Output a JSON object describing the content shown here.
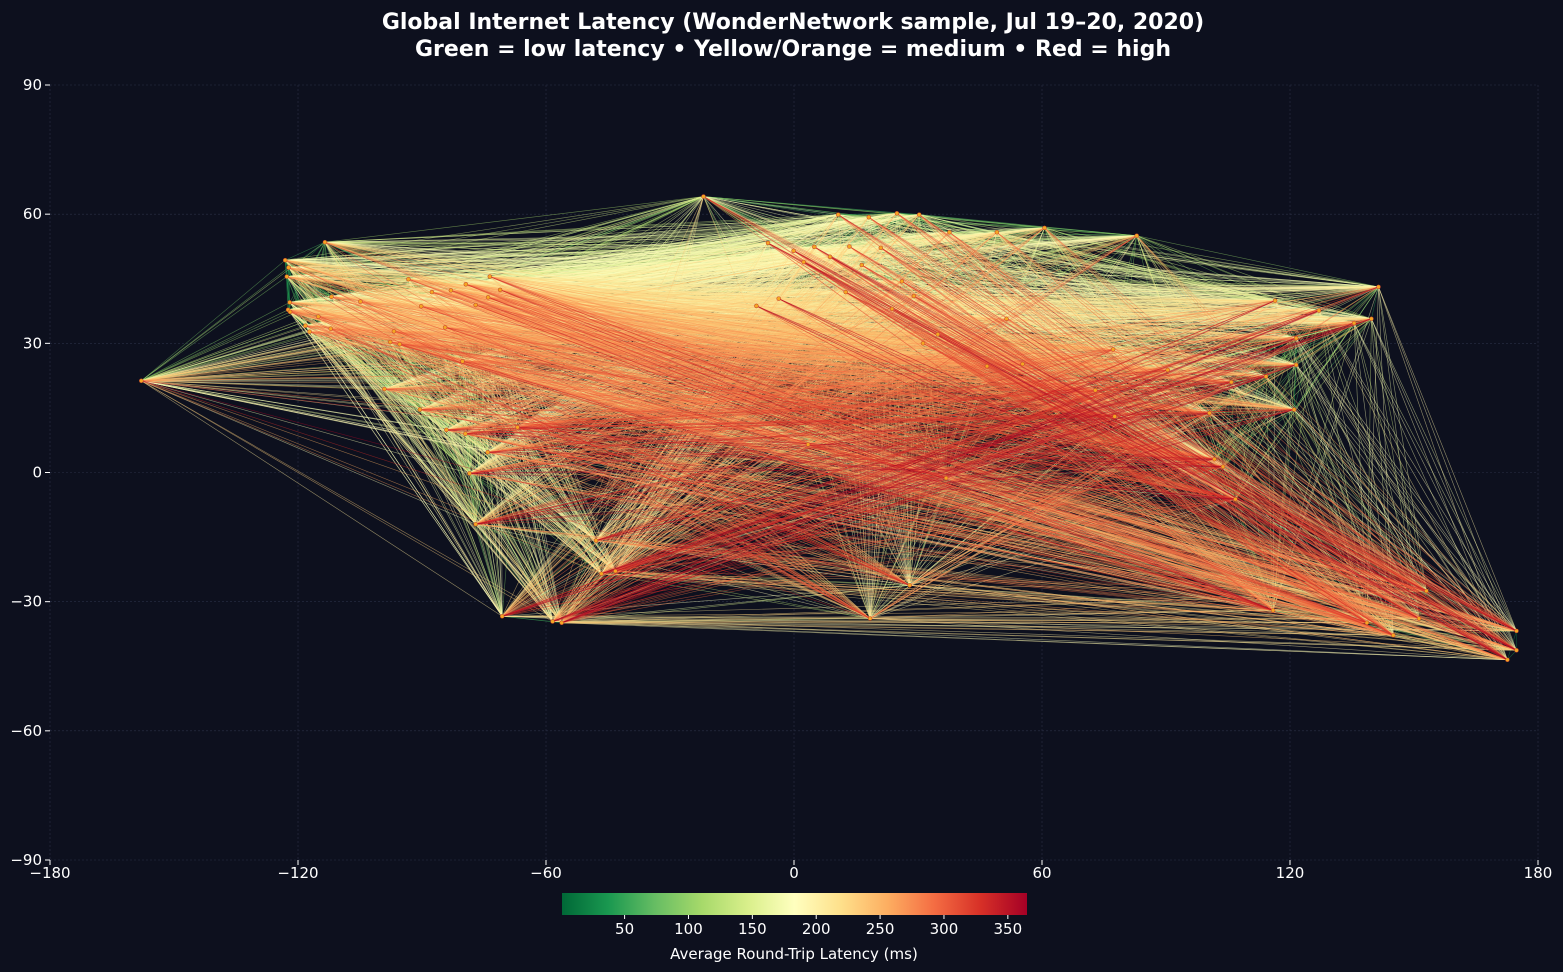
{
  "chart_data": {
    "type": "scatter",
    "title": "Global Internet Latency (WonderNetwork sample, Jul 19–20, 2020)",
    "subtitle": "Green = low latency • Yellow/Orange = medium • Red = high",
    "xlabel": "",
    "ylabel": "",
    "xlim": [
      -180,
      180
    ],
    "ylim": [
      -90,
      90
    ],
    "x_ticks": [
      -180,
      -120,
      -60,
      0,
      60,
      120,
      180
    ],
    "y_ticks": [
      90,
      60,
      30,
      0,
      -30,
      -60,
      -90
    ],
    "x_tick_labels": [
      "−180",
      "−120",
      "−60",
      "0",
      "60",
      "120",
      "180"
    ],
    "y_tick_labels": [
      "90",
      "60",
      "30",
      "0",
      "−30",
      "−60",
      "−90"
    ],
    "grid": true,
    "colorbar": {
      "label": "Average Round-Trip Latency (ms)",
      "range": [
        1,
        365
      ],
      "ticks": [
        50,
        100,
        150,
        200,
        250,
        300,
        350
      ],
      "tick_labels": [
        "50",
        "100",
        "150",
        "200",
        "250",
        "300",
        "350"
      ],
      "colormap": [
        "#006837",
        "#1a9850",
        "#66bd63",
        "#a6d96a",
        "#d9ef8b",
        "#ffffbf",
        "#fee08b",
        "#fdae61",
        "#f46d43",
        "#d73027",
        "#a50026"
      ]
    },
    "nodes": [
      {
        "lon": -157.9,
        "lat": 21.3
      },
      {
        "lon": -123.1,
        "lat": 49.3
      },
      {
        "lon": -113.5,
        "lat": 53.5
      },
      {
        "lon": -122.7,
        "lat": 45.5
      },
      {
        "lon": -122.3,
        "lat": 47.6
      },
      {
        "lon": -122.4,
        "lat": 37.8
      },
      {
        "lon": -121.9,
        "lat": 37.3
      },
      {
        "lon": -122.0,
        "lat": 39.5
      },
      {
        "lon": -118.2,
        "lat": 34.1
      },
      {
        "lon": -117.2,
        "lat": 32.7
      },
      {
        "lon": -112.1,
        "lat": 33.4
      },
      {
        "lon": -104.9,
        "lat": 39.7
      },
      {
        "lon": -111.9,
        "lat": 40.8
      },
      {
        "lon": -115.1,
        "lat": 36.2
      },
      {
        "lon": -97.7,
        "lat": 30.3
      },
      {
        "lon": -96.8,
        "lat": 32.8
      },
      {
        "lon": -95.4,
        "lat": 29.8
      },
      {
        "lon": -93.3,
        "lat": 44.9
      },
      {
        "lon": -90.2,
        "lat": 38.6
      },
      {
        "lon": -87.6,
        "lat": 41.9
      },
      {
        "lon": -84.4,
        "lat": 33.7
      },
      {
        "lon": -83.0,
        "lat": 42.3
      },
      {
        "lon": -80.2,
        "lat": 25.8
      },
      {
        "lon": -79.4,
        "lat": 43.7
      },
      {
        "lon": -77.0,
        "lat": 38.9
      },
      {
        "lon": -74.0,
        "lat": 40.7
      },
      {
        "lon": -73.6,
        "lat": 45.5
      },
      {
        "lon": -71.1,
        "lat": 42.4
      },
      {
        "lon": -99.1,
        "lat": 19.4
      },
      {
        "lon": -90.5,
        "lat": 14.6
      },
      {
        "lon": -84.1,
        "lat": 9.9
      },
      {
        "lon": -79.5,
        "lat": 9.0
      },
      {
        "lon": -74.1,
        "lat": 4.7
      },
      {
        "lon": -66.9,
        "lat": 10.5
      },
      {
        "lon": -78.5,
        "lat": -0.2
      },
      {
        "lon": -77.0,
        "lat": -12.0
      },
      {
        "lon": -70.6,
        "lat": -33.4
      },
      {
        "lon": -58.4,
        "lat": -34.6
      },
      {
        "lon": -56.2,
        "lat": -34.9
      },
      {
        "lon": -46.6,
        "lat": -23.5
      },
      {
        "lon": -43.2,
        "lat": -22.9
      },
      {
        "lon": -47.9,
        "lat": -15.8
      },
      {
        "lon": -21.9,
        "lat": 64.1
      },
      {
        "lon": -0.1,
        "lat": 51.5
      },
      {
        "lon": -6.3,
        "lat": 53.3
      },
      {
        "lon": 2.35,
        "lat": 48.9
      },
      {
        "lon": -3.7,
        "lat": 40.4
      },
      {
        "lon": -9.1,
        "lat": 38.7
      },
      {
        "lon": 4.9,
        "lat": 52.4
      },
      {
        "lon": 8.7,
        "lat": 50.1
      },
      {
        "lon": 13.4,
        "lat": 52.5
      },
      {
        "lon": 10.7,
        "lat": 59.9
      },
      {
        "lon": 18.1,
        "lat": 59.3
      },
      {
        "lon": 24.9,
        "lat": 60.2
      },
      {
        "lon": 30.3,
        "lat": 59.9
      },
      {
        "lon": 37.6,
        "lat": 55.8
      },
      {
        "lon": 12.5,
        "lat": 41.9
      },
      {
        "lon": 16.4,
        "lat": 48.2
      },
      {
        "lon": 21.0,
        "lat": 52.2
      },
      {
        "lon": 26.1,
        "lat": 44.4
      },
      {
        "lon": 23.7,
        "lat": 38.0
      },
      {
        "lon": 29.0,
        "lat": 41.0
      },
      {
        "lon": 34.8,
        "lat": 32.1
      },
      {
        "lon": 31.2,
        "lat": 30.0
      },
      {
        "lon": 49.1,
        "lat": 55.8
      },
      {
        "lon": 60.6,
        "lat": 56.8
      },
      {
        "lon": 82.9,
        "lat": 55.0
      },
      {
        "lon": 51.4,
        "lat": 35.7
      },
      {
        "lon": 55.3,
        "lat": 25.2
      },
      {
        "lon": 46.7,
        "lat": 24.7
      },
      {
        "lon": 72.9,
        "lat": 19.1
      },
      {
        "lon": 77.2,
        "lat": 28.6
      },
      {
        "lon": 77.6,
        "lat": 13.0
      },
      {
        "lon": 90.4,
        "lat": 23.8
      },
      {
        "lon": 100.5,
        "lat": 13.8
      },
      {
        "lon": 103.8,
        "lat": 1.35
      },
      {
        "lon": 101.7,
        "lat": 3.1
      },
      {
        "lon": 106.8,
        "lat": -6.2
      },
      {
        "lon": 105.8,
        "lat": 21.0
      },
      {
        "lon": 114.2,
        "lat": 22.3
      },
      {
        "lon": 121.5,
        "lat": 25.0
      },
      {
        "lon": 121.0,
        "lat": 14.6
      },
      {
        "lon": 116.4,
        "lat": 39.9
      },
      {
        "lon": 121.5,
        "lat": 31.2
      },
      {
        "lon": 127.0,
        "lat": 37.6
      },
      {
        "lon": 139.7,
        "lat": 35.7
      },
      {
        "lon": 135.5,
        "lat": 34.7
      },
      {
        "lon": 141.4,
        "lat": 43.1
      },
      {
        "lon": 3.4,
        "lat": 6.5
      },
      {
        "lon": 36.8,
        "lat": -1.3
      },
      {
        "lon": 18.4,
        "lat": -33.9
      },
      {
        "lon": 28.0,
        "lat": -26.2
      },
      {
        "lon": 115.9,
        "lat": -32.0
      },
      {
        "lon": 138.6,
        "lat": -34.9
      },
      {
        "lon": 145.0,
        "lat": -37.8
      },
      {
        "lon": 151.2,
        "lat": -33.9
      },
      {
        "lon": 153.0,
        "lat": -27.5
      },
      {
        "lon": 174.8,
        "lat": -36.8
      },
      {
        "lon": 174.8,
        "lat": -41.3
      },
      {
        "lon": 172.6,
        "lat": -43.5
      }
    ]
  }
}
